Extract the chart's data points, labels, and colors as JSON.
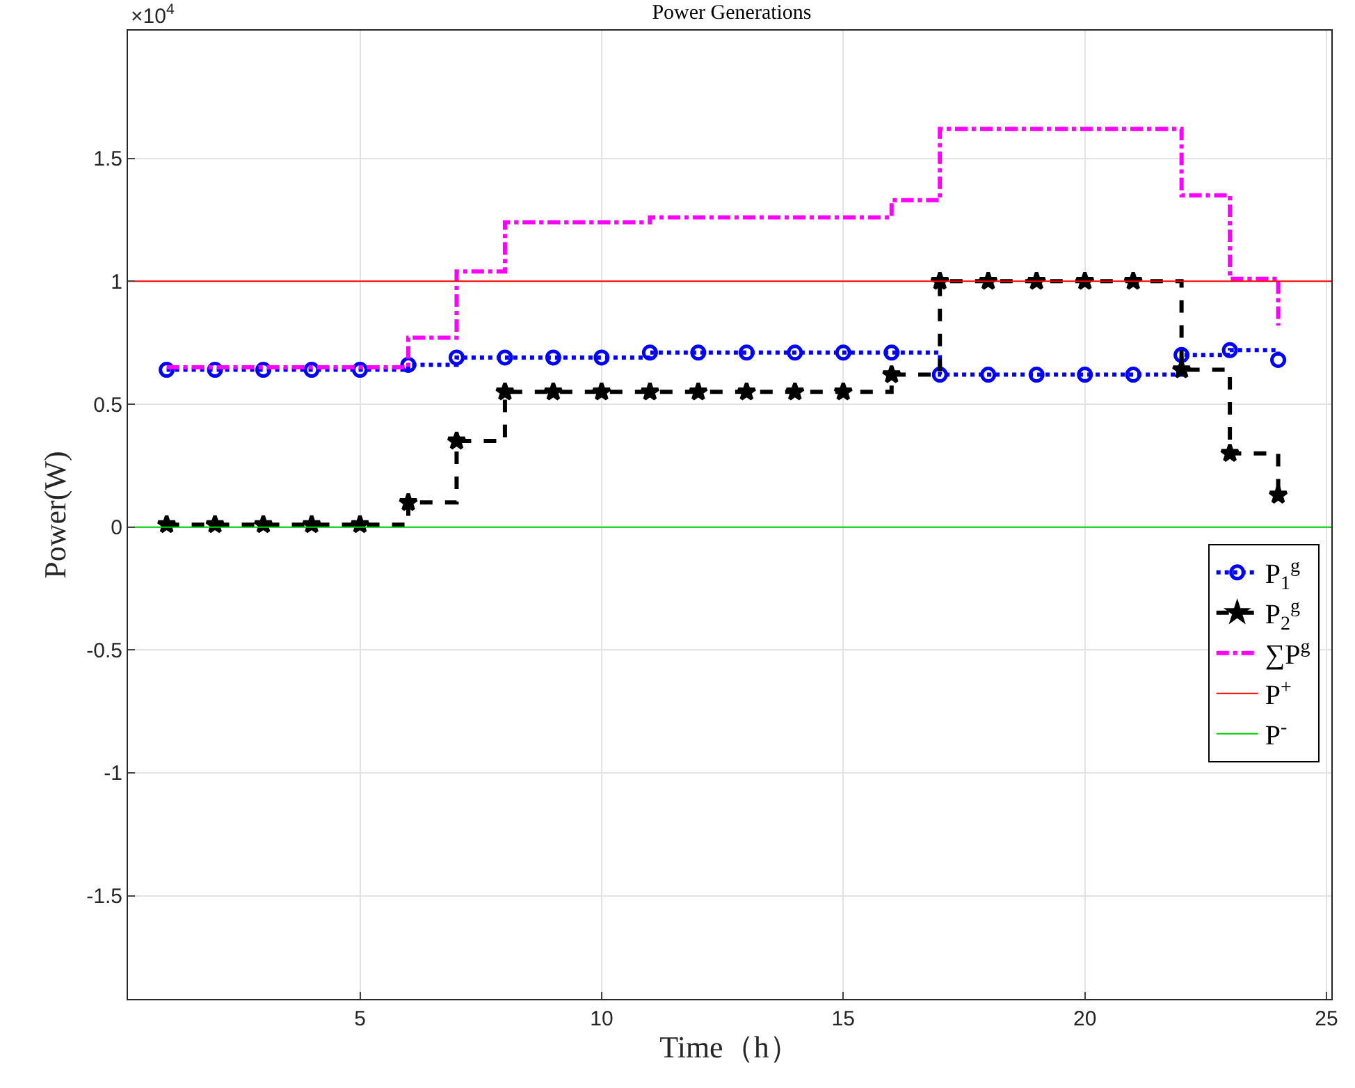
{
  "chart_data": {
    "type": "step",
    "title": "Power Generations",
    "xlabel": "Time（h）",
    "ylabel": "Power(W)",
    "annotations": [
      "×10$^{4}$"
    ],
    "x": [
      1,
      2,
      3,
      4,
      5,
      6,
      7,
      8,
      9,
      10,
      11,
      12,
      13,
      14,
      15,
      16,
      17,
      18,
      19,
      20,
      21,
      22,
      23,
      24
    ],
    "series": [
      {
        "name": "P$_{1}$$^{g}$",
        "color": "#0000ff",
        "marker": "circle",
        "line_style": "dotted",
        "values": [
          0.64,
          0.64,
          0.64,
          0.64,
          0.64,
          0.66,
          0.69,
          0.69,
          0.69,
          0.69,
          0.71,
          0.71,
          0.71,
          0.71,
          0.71,
          0.71,
          0.62,
          0.62,
          0.62,
          0.62,
          0.62,
          0.7,
          0.72,
          0.68
        ]
      },
      {
        "name": "P$_{2}$$^{g}$",
        "color": "#000000",
        "marker": "star",
        "line_style": "dashed",
        "values": [
          0.01,
          0.01,
          0.01,
          0.01,
          0.01,
          0.1,
          0.35,
          0.55,
          0.55,
          0.55,
          0.55,
          0.55,
          0.55,
          0.55,
          0.55,
          0.62,
          1.0,
          1.0,
          1.0,
          1.0,
          1.0,
          0.64,
          0.3,
          0.13
        ]
      },
      {
        "name": "∑P$^{g}$",
        "color": "#ff00ff",
        "marker": "none",
        "line_style": "dashdot",
        "values": [
          0.65,
          0.65,
          0.65,
          0.65,
          0.65,
          0.77,
          1.04,
          1.24,
          1.24,
          1.24,
          1.26,
          1.26,
          1.26,
          1.26,
          1.26,
          1.33,
          1.62,
          1.62,
          1.62,
          1.62,
          1.62,
          1.35,
          1.01,
          0.82
        ]
      }
    ],
    "ref_lines": [
      {
        "axis": "y",
        "value": 1,
        "label": "P$^{+}$",
        "color": "#ff0000"
      },
      {
        "axis": "y",
        "value": 0,
        "label": "P$^{-}$",
        "color": "#00cc00"
      }
    ],
    "xlim": [
      0.2,
      25.1
    ],
    "xticks": [
      5,
      10,
      15,
      20,
      25
    ],
    "ylim": [
      -1.92,
      2.02
    ],
    "yticks": [
      -1.5,
      -1,
      -0.5,
      0,
      0.5,
      1,
      1.5
    ],
    "grid": true,
    "legend": "right"
  }
}
